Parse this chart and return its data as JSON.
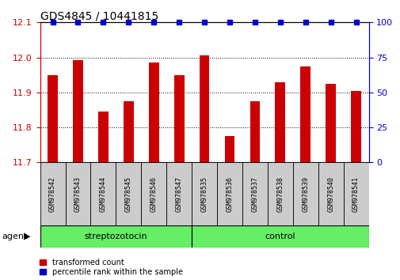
{
  "title": "GDS4845 / 10441815",
  "samples": [
    "GSM978542",
    "GSM978543",
    "GSM978544",
    "GSM978545",
    "GSM978546",
    "GSM978547",
    "GSM978535",
    "GSM978536",
    "GSM978537",
    "GSM978538",
    "GSM978539",
    "GSM978540",
    "GSM978541"
  ],
  "red_values": [
    11.95,
    11.993,
    11.845,
    11.875,
    11.985,
    11.95,
    12.005,
    11.775,
    11.875,
    11.93,
    11.975,
    11.925,
    11.905
  ],
  "blue_values": [
    100,
    100,
    100,
    100,
    100,
    100,
    100,
    100,
    100,
    100,
    100,
    100,
    100
  ],
  "ylim_left": [
    11.7,
    12.1
  ],
  "ylim_right": [
    0,
    100
  ],
  "yticks_left": [
    11.7,
    11.8,
    11.9,
    12.0,
    12.1
  ],
  "yticks_right": [
    0,
    25,
    50,
    75,
    100
  ],
  "bar_color": "#cc0000",
  "dot_color": "#0000cc",
  "grid_color": "#000000",
  "background_color": "#ffffff",
  "sample_box_color": "#cccccc",
  "group_box_color": "#66ee66",
  "streptozotocin_label": "streptozotocin",
  "control_label": "control",
  "legend_red": "transformed count",
  "legend_blue": "percentile rank within the sample",
  "agent_label": "agent",
  "left_axis_color": "#cc0000",
  "right_axis_color": "#0000cc",
  "title_fontsize": 10,
  "tick_fontsize": 8,
  "bar_width": 0.4,
  "n_strep": 6,
  "n_ctrl": 7
}
